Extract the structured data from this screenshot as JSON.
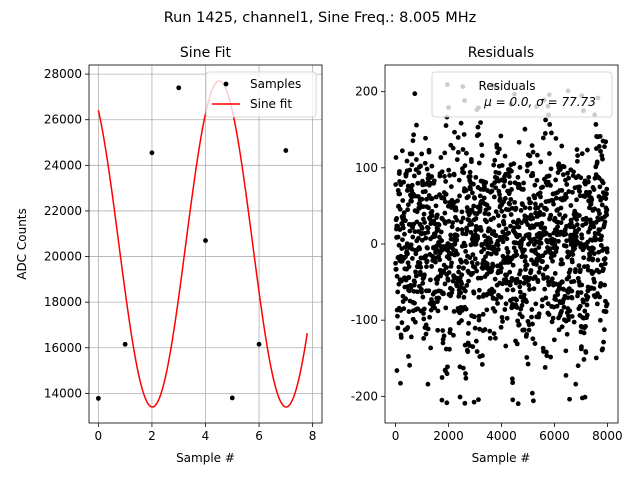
{
  "figure": {
    "suptitle": "Run 1425, channel1, Sine Freq.: 8.005 MHz"
  },
  "chart_data": [
    {
      "type": "scatter+line",
      "title": "Sine Fit",
      "xlabel": "Sample #",
      "ylabel": "ADC Counts",
      "xlim": [
        -0.35,
        8.35
      ],
      "ylim": [
        12700,
        28400
      ],
      "xticks": [
        0,
        2,
        4,
        6,
        8
      ],
      "yticks": [
        14000,
        16000,
        18000,
        20000,
        22000,
        24000,
        26000,
        28000
      ],
      "grid": true,
      "legend_position": "upper-right",
      "series": [
        {
          "name": "Samples",
          "kind": "scatter",
          "color": "#000000",
          "x": [
            0,
            1,
            2,
            3,
            4,
            5,
            6,
            7
          ],
          "y": [
            13780,
            16150,
            24550,
            27400,
            20700,
            13800,
            16150,
            24650
          ]
        },
        {
          "name": "Sine fit",
          "kind": "line",
          "color": "#ff0000",
          "model": {
            "offset": 20550,
            "amplitude": 7150,
            "period": 4.997,
            "phase": 2.18,
            "x_range": [
              0,
              7.8
            ]
          }
        }
      ]
    },
    {
      "type": "scatter",
      "title": "Residuals",
      "xlabel": "Sample #",
      "ylabel": "",
      "xlim": [
        -400,
        8400
      ],
      "ylim": [
        -235,
        235
      ],
      "xticks": [
        0,
        2000,
        4000,
        6000,
        8000
      ],
      "yticks": [
        -200,
        -100,
        0,
        100,
        200
      ],
      "grid": false,
      "legend_position": "upper-right",
      "legend_lines": [
        "Residuals",
        "μ = 0.0, σ = 77.73"
      ],
      "series": [
        {
          "name": "Residuals",
          "color": "#000000",
          "n_points": 8000,
          "mean": 0.0,
          "std": 77.73,
          "envelope_period": 640,
          "max_abs": 210
        }
      ]
    }
  ]
}
